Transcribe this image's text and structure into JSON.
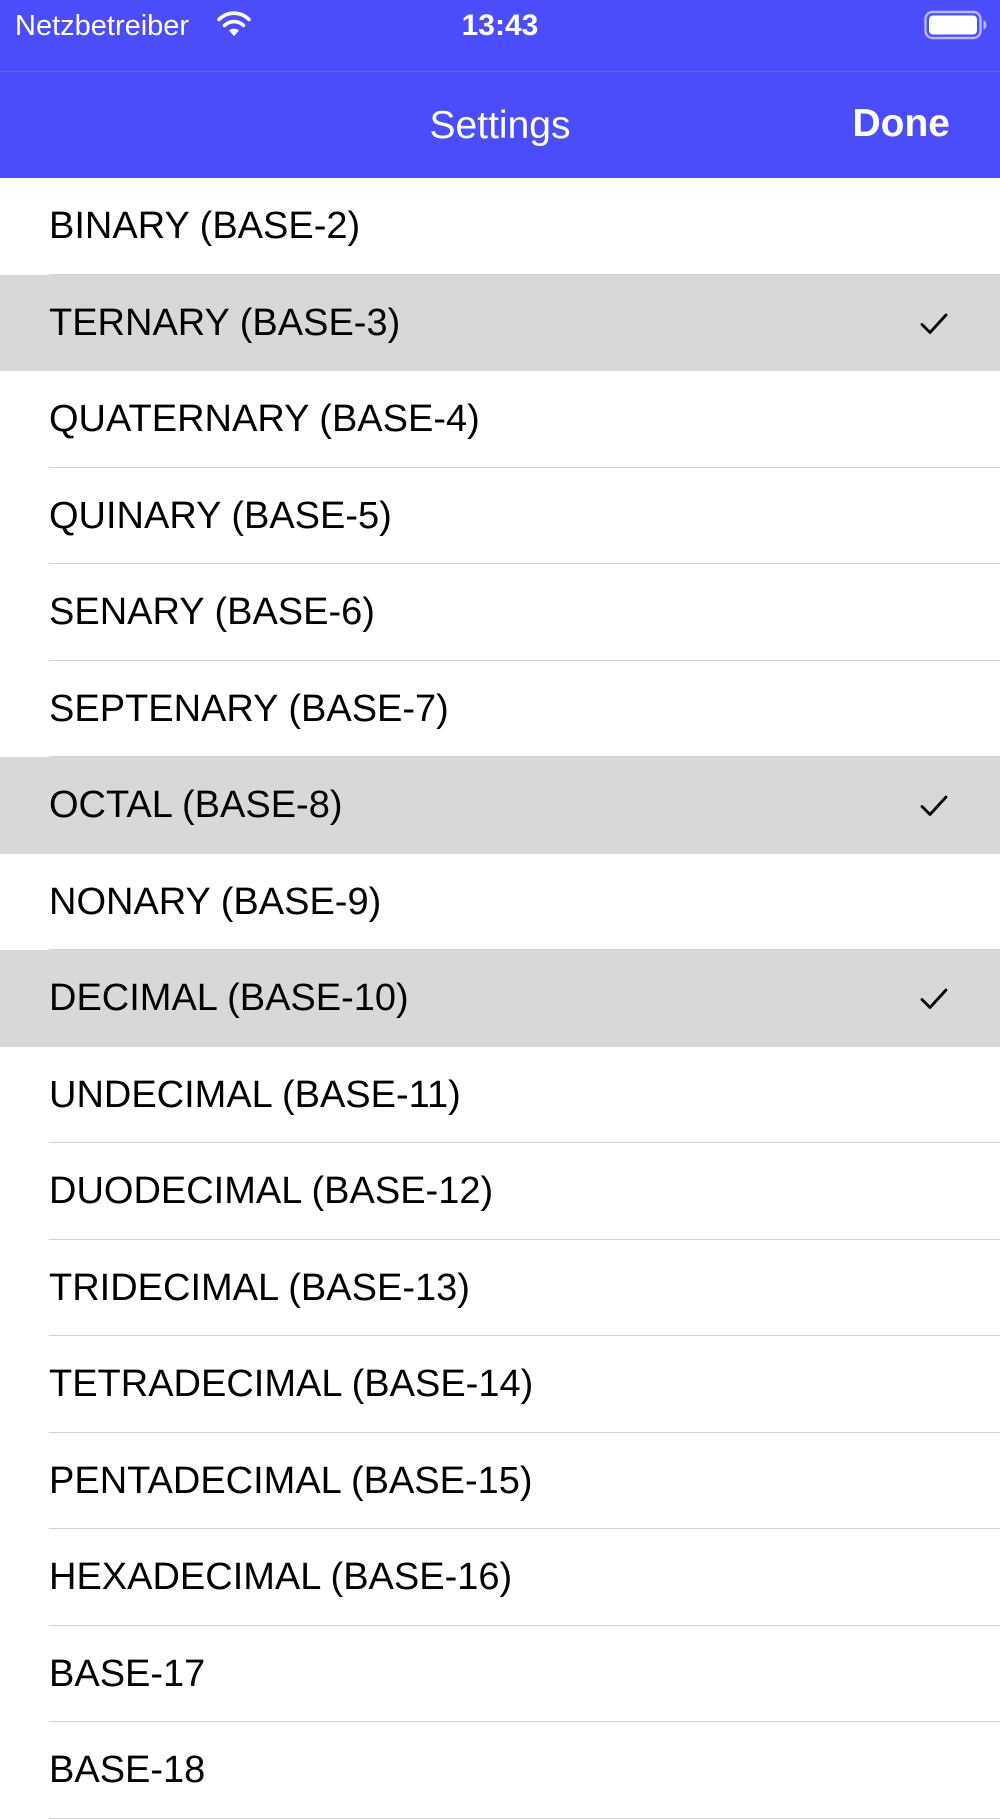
{
  "status_bar": {
    "carrier": "Netzbetreiber",
    "time": "13:43",
    "wifi_icon": "wifi-icon",
    "battery_icon": "battery-icon"
  },
  "nav": {
    "title": "Settings",
    "done_label": "Done",
    "background_color": "#4b4cfb"
  },
  "list": {
    "selected_color": "#d8d8d8",
    "check_icon": "checkmark-icon",
    "items": [
      {
        "label": "BINARY (BASE-2)",
        "selected": false
      },
      {
        "label": "TERNARY (BASE-3)",
        "selected": true
      },
      {
        "label": "QUATERNARY (BASE-4)",
        "selected": false
      },
      {
        "label": "QUINARY (BASE-5)",
        "selected": false
      },
      {
        "label": "SENARY (BASE-6)",
        "selected": false
      },
      {
        "label": "SEPTENARY (BASE-7)",
        "selected": false
      },
      {
        "label": "OCTAL (BASE-8)",
        "selected": true
      },
      {
        "label": "NONARY (BASE-9)",
        "selected": false
      },
      {
        "label": "DECIMAL (BASE-10)",
        "selected": true
      },
      {
        "label": "UNDECIMAL (BASE-11)",
        "selected": false
      },
      {
        "label": "DUODECIMAL (BASE-12)",
        "selected": false
      },
      {
        "label": "TRIDECIMAL (BASE-13)",
        "selected": false
      },
      {
        "label": "TETRADECIMAL (BASE-14)",
        "selected": false
      },
      {
        "label": "PENTADECIMAL (BASE-15)",
        "selected": false
      },
      {
        "label": "HEXADECIMAL (BASE-16)",
        "selected": false
      },
      {
        "label": "BASE-17",
        "selected": false
      },
      {
        "label": "BASE-18",
        "selected": false
      }
    ]
  }
}
